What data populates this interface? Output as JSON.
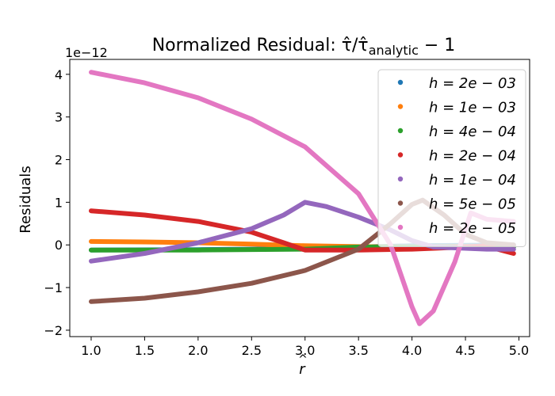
{
  "chart_data": {
    "type": "scatter",
    "title": "Normalized Residual: τ̂/τ̂",
    "title_sub": "analytic",
    "title_tail": " − 1",
    "xlabel": "r",
    "xlabel_hat": "^",
    "ylabel": "Residuals",
    "offset_text": "1e−12",
    "xlim": [
      0.8,
      5.1
    ],
    "ylim": [
      -2.15,
      4.35
    ],
    "xticks": [
      1.0,
      1.5,
      2.0,
      2.5,
      3.0,
      3.5,
      4.0,
      4.5,
      5.0
    ],
    "xtick_labels": [
      "1.0",
      "1.5",
      "2.0",
      "2.5",
      "3.0",
      "3.5",
      "4.0",
      "4.5",
      "5.0"
    ],
    "yticks": [
      -2,
      -1,
      0,
      1,
      2,
      3,
      4
    ],
    "ytick_labels": [
      "−2",
      "−1",
      "0",
      "1",
      "2",
      "3",
      "4"
    ],
    "grid": false,
    "legend_position": "top-right",
    "series": [
      {
        "name": "h = 2e − 03",
        "color": "#1f77b4",
        "x": [
          1.0,
          2.0,
          3.0,
          3.5,
          4.0,
          4.5,
          4.95
        ],
        "y": [
          -0.12,
          -0.11,
          -0.09,
          -0.05,
          -0.02,
          -0.01,
          0.0
        ]
      },
      {
        "name": "h = 1e − 03",
        "color": "#ff7f0e",
        "x": [
          1.0,
          1.5,
          2.0,
          2.5,
          3.0,
          3.5,
          4.0,
          4.5,
          4.95
        ],
        "y": [
          0.08,
          0.07,
          0.05,
          0.02,
          -0.02,
          -0.04,
          -0.05,
          -0.04,
          -0.03
        ]
      },
      {
        "name": "h = 4e − 04",
        "color": "#2ca02c",
        "x": [
          1.0,
          2.0,
          3.0,
          3.5,
          4.0,
          4.5,
          4.95
        ],
        "y": [
          -0.12,
          -0.12,
          -0.1,
          -0.05,
          -0.05,
          -0.05,
          -0.05
        ]
      },
      {
        "name": "h = 2e − 04",
        "color": "#d62728",
        "x": [
          1.0,
          1.5,
          2.0,
          2.5,
          2.8,
          3.0,
          3.5,
          4.0,
          4.5,
          4.7,
          4.8,
          4.95
        ],
        "y": [
          0.8,
          0.7,
          0.55,
          0.3,
          0.05,
          -0.12,
          -0.12,
          -0.1,
          -0.05,
          -0.02,
          -0.1,
          -0.2
        ]
      },
      {
        "name": "h = 1e − 04",
        "color": "#9467bd",
        "x": [
          1.0,
          1.5,
          2.0,
          2.5,
          2.8,
          3.0,
          3.2,
          3.5,
          3.8,
          4.0,
          4.2,
          4.5,
          4.7,
          4.95
        ],
        "y": [
          -0.38,
          -0.2,
          0.05,
          0.38,
          0.7,
          1.0,
          0.9,
          0.65,
          0.35,
          0.1,
          -0.05,
          -0.08,
          -0.1,
          -0.1
        ]
      },
      {
        "name": "h = 5e − 05",
        "color": "#8c564b",
        "x": [
          1.0,
          1.5,
          2.0,
          2.5,
          3.0,
          3.5,
          3.8,
          4.0,
          4.1,
          4.3,
          4.5,
          4.7,
          4.95
        ],
        "y": [
          -1.33,
          -1.25,
          -1.1,
          -0.9,
          -0.6,
          -0.1,
          0.5,
          0.95,
          1.05,
          0.7,
          0.25,
          0.05,
          0.0
        ]
      },
      {
        "name": "h = 2e − 05",
        "color": "#e377c2",
        "x": [
          1.0,
          1.5,
          2.0,
          2.5,
          3.0,
          3.5,
          3.8,
          4.0,
          4.07,
          4.2,
          4.4,
          4.55,
          4.7,
          4.95
        ],
        "y": [
          4.05,
          3.8,
          3.45,
          2.95,
          2.3,
          1.2,
          0.0,
          -1.45,
          -1.85,
          -1.55,
          -0.4,
          0.75,
          0.6,
          0.55
        ]
      }
    ]
  }
}
